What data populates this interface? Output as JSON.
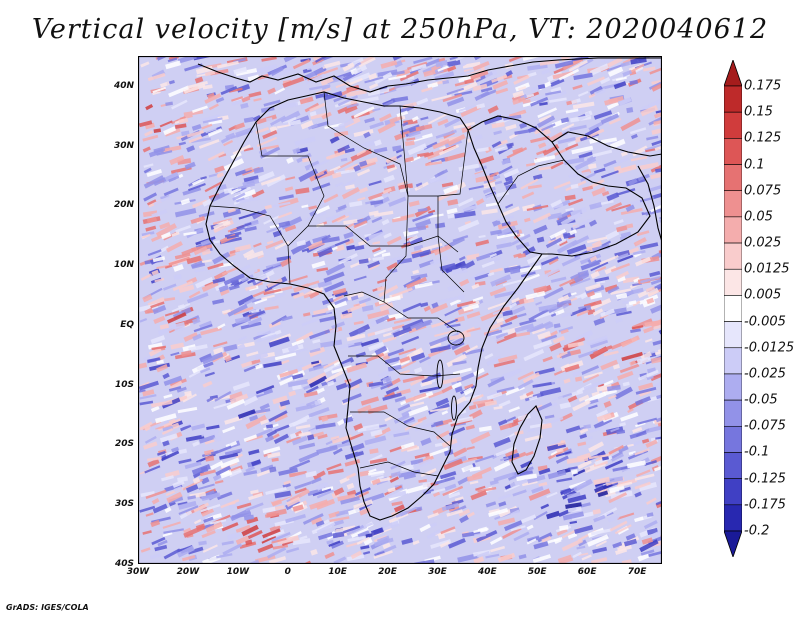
{
  "title": "Vertical velocity [m/s] at 250hPa, VT: 2020040612",
  "map": {
    "variable": "Vertical velocity",
    "units": "m/s",
    "level": "250hPa",
    "valid_time": "2020040612",
    "lon_range": [
      -30,
      75
    ],
    "lat_range": [
      -40,
      45
    ],
    "lat_labels": [
      {
        "lat": 40,
        "text": "40N"
      },
      {
        "lat": 30,
        "text": "30N"
      },
      {
        "lat": 20,
        "text": "20N"
      },
      {
        "lat": 10,
        "text": "10N"
      },
      {
        "lat": 0,
        "text": "EQ"
      },
      {
        "lat": -10,
        "text": "10S"
      },
      {
        "lat": -20,
        "text": "20S"
      },
      {
        "lat": -30,
        "text": "30S"
      },
      {
        "lat": -40,
        "text": "40S"
      }
    ],
    "lon_labels": [
      {
        "lon": -30,
        "text": "30W"
      },
      {
        "lon": -20,
        "text": "20W"
      },
      {
        "lon": -10,
        "text": "10W"
      },
      {
        "lon": 0,
        "text": "0"
      },
      {
        "lon": 10,
        "text": "10E"
      },
      {
        "lon": 20,
        "text": "20E"
      },
      {
        "lon": 30,
        "text": "30E"
      },
      {
        "lon": 40,
        "text": "40E"
      },
      {
        "lon": 50,
        "text": "50E"
      },
      {
        "lon": 60,
        "text": "60E"
      },
      {
        "lon": 70,
        "text": "70E"
      }
    ]
  },
  "colorbar": {
    "levels": [
      "0.175",
      "0.15",
      "0.125",
      "0.1",
      "0.075",
      "0.05",
      "0.025",
      "0.0125",
      "0.005",
      "-0.005",
      "-0.0125",
      "-0.025",
      "-0.05",
      "-0.075",
      "-0.1",
      "-0.125",
      "-0.175",
      "-0.2"
    ],
    "colors": [
      "#a51c1c",
      "#be2a2a",
      "#d03c3c",
      "#dd5656",
      "#e67272",
      "#ee9090",
      "#f4adad",
      "#f9cccc",
      "#fce6e6",
      "#ffffff",
      "#e6e6fc",
      "#ccccf7",
      "#adadf0",
      "#9292e8",
      "#7676de",
      "#5a5ad2",
      "#4040c4",
      "#2828b0",
      "#1a1a98"
    ]
  },
  "credit": "GrADS: IGES/COLA"
}
